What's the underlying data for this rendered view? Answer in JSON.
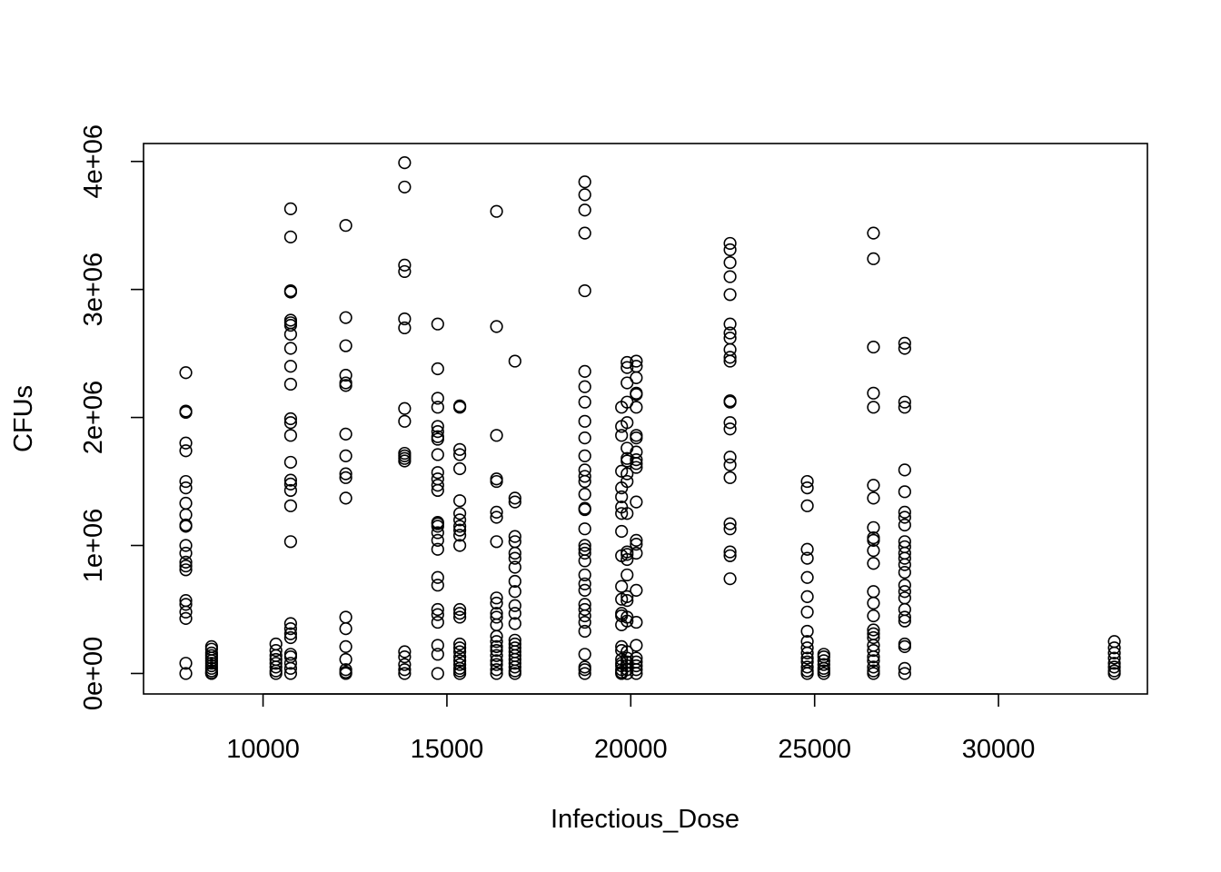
{
  "chart_data": {
    "type": "scatter",
    "title": "",
    "xlabel": "Infectious_Dose",
    "ylabel": "CFUs",
    "xlim": [
      6750,
      34050
    ],
    "ylim": [
      -160000,
      4140000
    ],
    "x_ticks": [
      10000,
      15000,
      20000,
      25000,
      30000
    ],
    "x_tick_labels": [
      "10000",
      "15000",
      "20000",
      "25000",
      "30000"
    ],
    "y_ticks": [
      0,
      1000000,
      2000000,
      3000000,
      4000000
    ],
    "y_tick_labels": [
      "0e+00",
      "1e+06",
      "2e+06",
      "3e+06",
      "4e+06"
    ],
    "grid": false,
    "columns": [
      {
        "x": 7900,
        "y": [
          2350000,
          2050000,
          2040000,
          1800000,
          1740000,
          1500000,
          1450000,
          1330000,
          1240000,
          1160000,
          1150000,
          1000000,
          940000,
          870000,
          840000,
          810000,
          570000,
          540000,
          480000,
          430000,
          80000,
          0
        ]
      },
      {
        "x": 8600,
        "y": [
          210000,
          190000,
          160000,
          140000,
          120000,
          100000,
          80000,
          60000,
          40000,
          20000,
          5000,
          0
        ]
      },
      {
        "x": 10350,
        "y": [
          230000,
          180000,
          140000,
          110000,
          80000,
          50000,
          20000,
          0
        ]
      },
      {
        "x": 10750,
        "y": [
          3630000,
          3410000,
          2990000,
          2980000,
          2760000,
          2740000,
          2720000,
          2650000,
          2540000,
          2400000,
          2260000,
          1990000,
          1960000,
          1860000,
          1650000,
          1510000,
          1480000,
          1430000,
          1310000,
          1030000,
          390000,
          350000,
          310000,
          280000,
          150000,
          130000,
          80000,
          40000,
          0
        ]
      },
      {
        "x": 12250,
        "y": [
          3500000,
          2780000,
          2560000,
          2330000,
          2270000,
          2250000,
          1870000,
          1700000,
          1560000,
          1530000,
          1370000,
          440000,
          350000,
          210000,
          110000,
          30000,
          10000,
          0
        ]
      },
      {
        "x": 13850,
        "y": [
          3990000,
          3800000,
          3190000,
          3140000,
          2770000,
          2700000,
          2070000,
          1970000,
          1720000,
          1700000,
          1680000,
          1660000,
          170000,
          130000,
          70000,
          30000,
          0
        ]
      },
      {
        "x": 14750,
        "y": [
          2730000,
          2380000,
          2150000,
          2080000,
          1930000,
          1890000,
          1850000,
          1830000,
          1710000,
          1570000,
          1520000,
          1470000,
          1430000,
          1180000,
          1170000,
          1150000,
          1100000,
          1040000,
          970000,
          750000,
          690000,
          500000,
          460000,
          400000,
          220000,
          150000,
          0
        ]
      },
      {
        "x": 15350,
        "y": [
          2090000,
          2080000,
          1750000,
          1710000,
          1600000,
          1350000,
          1250000,
          1200000,
          1150000,
          1120000,
          1080000,
          1000000,
          500000,
          470000,
          440000,
          230000,
          200000,
          170000,
          130000,
          100000,
          70000,
          40000,
          20000,
          0
        ]
      },
      {
        "x": 16350,
        "y": [
          3610000,
          2710000,
          1860000,
          1520000,
          1500000,
          1260000,
          1220000,
          1030000,
          590000,
          550000,
          470000,
          440000,
          380000,
          290000,
          250000,
          210000,
          180000,
          140000,
          100000,
          70000,
          30000,
          0
        ]
      },
      {
        "x": 16850,
        "y": [
          2440000,
          1370000,
          1340000,
          1070000,
          1030000,
          940000,
          900000,
          830000,
          720000,
          640000,
          530000,
          470000,
          390000,
          260000,
          230000,
          200000,
          170000,
          140000,
          110000,
          80000,
          50000,
          20000,
          0
        ]
      },
      {
        "x": 18750,
        "y": [
          3840000,
          3740000,
          3620000,
          3440000,
          2990000,
          2360000,
          2240000,
          2120000,
          1970000,
          1840000,
          1700000,
          1590000,
          1540000,
          1500000,
          1400000,
          1290000,
          1280000,
          1130000,
          1000000,
          970000,
          940000,
          880000,
          770000,
          700000,
          650000,
          540000,
          500000,
          450000,
          400000,
          330000,
          150000,
          50000,
          30000,
          0
        ]
      },
      {
        "x": 19750,
        "y": [
          2080000,
          1930000,
          1860000,
          1580000,
          1450000,
          1380000,
          1300000,
          1250000,
          1110000,
          920000,
          680000,
          580000,
          470000,
          450000,
          380000,
          210000,
          180000,
          110000,
          80000,
          60000,
          30000,
          10000,
          0
        ]
      },
      {
        "x": 19900,
        "y": [
          2430000,
          2390000,
          2270000,
          2120000,
          1960000,
          1760000,
          1680000,
          1660000,
          1560000,
          1500000,
          1250000,
          950000,
          930000,
          890000,
          770000,
          600000,
          570000,
          440000,
          410000,
          170000,
          120000,
          90000,
          60000,
          30000,
          0
        ]
      },
      {
        "x": 20150,
        "y": [
          2440000,
          2400000,
          2310000,
          2190000,
          2180000,
          2080000,
          1860000,
          1840000,
          1730000,
          1670000,
          1640000,
          1610000,
          1340000,
          1040000,
          1010000,
          940000,
          650000,
          400000,
          220000,
          120000,
          90000,
          60000,
          30000,
          0
        ]
      },
      {
        "x": 22700,
        "y": [
          3360000,
          3310000,
          3210000,
          3100000,
          2960000,
          2730000,
          2660000,
          2620000,
          2530000,
          2470000,
          2440000,
          2130000,
          2120000,
          1960000,
          1910000,
          1690000,
          1630000,
          1530000,
          1170000,
          1130000,
          950000,
          920000,
          740000
        ]
      },
      {
        "x": 24800,
        "y": [
          1500000,
          1450000,
          1310000,
          970000,
          900000,
          750000,
          600000,
          480000,
          330000,
          250000,
          200000,
          160000,
          120000,
          90000,
          50000,
          20000,
          0
        ]
      },
      {
        "x": 25250,
        "y": [
          150000,
          130000,
          100000,
          70000,
          40000,
          20000,
          0
        ]
      },
      {
        "x": 26600,
        "y": [
          3440000,
          3240000,
          2550000,
          2190000,
          2080000,
          1470000,
          1370000,
          1140000,
          1060000,
          1040000,
          960000,
          860000,
          640000,
          550000,
          450000,
          340000,
          310000,
          280000,
          220000,
          180000,
          130000,
          100000,
          50000,
          20000,
          0
        ]
      },
      {
        "x": 27450,
        "y": [
          2580000,
          2540000,
          2120000,
          2080000,
          1590000,
          1420000,
          1260000,
          1220000,
          1160000,
          1030000,
          990000,
          940000,
          900000,
          850000,
          790000,
          690000,
          640000,
          590000,
          500000,
          440000,
          410000,
          230000,
          210000,
          40000,
          0
        ]
      },
      {
        "x": 33150,
        "y": [
          250000,
          200000,
          160000,
          120000,
          80000,
          50000,
          20000,
          0
        ]
      }
    ]
  }
}
